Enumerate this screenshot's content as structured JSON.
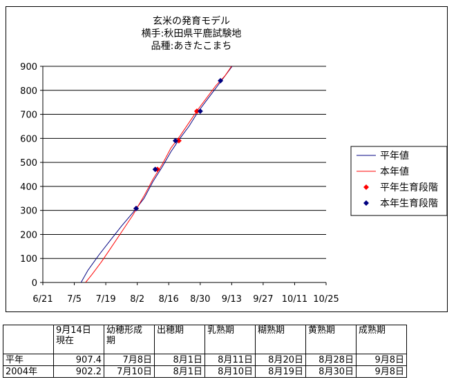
{
  "chart_data": {
    "type": "line",
    "title": [
      "玄米の発育モデル",
      "横手:秋田県平鹿試験地",
      "品種:あきたこまち"
    ],
    "x_ticks": [
      "6/21",
      "7/5",
      "7/19",
      "8/2",
      "8/16",
      "8/30",
      "9/13",
      "9/27",
      "10/11",
      "10/25"
    ],
    "x_tick_days": [
      0,
      14,
      28,
      42,
      56,
      70,
      84,
      98,
      112,
      126
    ],
    "y_ticks": [
      "0",
      "100",
      "200",
      "300",
      "400",
      "500",
      "600",
      "700",
      "800",
      "900"
    ],
    "ylim": [
      0,
      900
    ],
    "grid": "horizontal",
    "legend_position": "right",
    "series": [
      {
        "name": "平年値",
        "color": "#000080",
        "points": [
          [
            17,
            0
          ],
          [
            20,
            50
          ],
          [
            25,
            115
          ],
          [
            30,
            175
          ],
          [
            35,
            235
          ],
          [
            40,
            290
          ],
          [
            45,
            350
          ],
          [
            49,
            420
          ],
          [
            53,
            480
          ],
          [
            57,
            545
          ],
          [
            61,
            600
          ],
          [
            65,
            650
          ],
          [
            69,
            710
          ],
          [
            73,
            760
          ],
          [
            77,
            810
          ],
          [
            81,
            860
          ],
          [
            85,
            910
          ]
        ]
      },
      {
        "name": "本年値",
        "color": "#ff0000",
        "points": [
          [
            19,
            0
          ],
          [
            22,
            35
          ],
          [
            26,
            85
          ],
          [
            30,
            140
          ],
          [
            35,
            210
          ],
          [
            40,
            280
          ],
          [
            45,
            360
          ],
          [
            49,
            430
          ],
          [
            53,
            490
          ],
          [
            57,
            560
          ],
          [
            61,
            610
          ],
          [
            65,
            665
          ],
          [
            69,
            720
          ],
          [
            73,
            770
          ],
          [
            77,
            820
          ],
          [
            81,
            860
          ],
          [
            85,
            915
          ]
        ]
      },
      {
        "name": "平年生育段階",
        "color": "#ff0000",
        "marker": "diamond",
        "points": [
          [
            41.5,
            308
          ],
          [
            51,
            471
          ],
          [
            60.5,
            590
          ],
          [
            68.5,
            713
          ]
        ]
      },
      {
        "name": "本年生育段階",
        "color": "#000080",
        "marker": "diamond",
        "points": [
          [
            41.5,
            308
          ],
          [
            50,
            471
          ],
          [
            59,
            590
          ],
          [
            70,
            713
          ],
          [
            79,
            840
          ]
        ]
      }
    ]
  },
  "table": {
    "header": [
      "",
      "9月14日\n現在",
      "幼穂形成\n期",
      "出穂期",
      "乳熟期",
      "糊熟期",
      "黄熟期",
      "成熟期"
    ],
    "rows": [
      [
        "平年",
        "907.4",
        "7月8日",
        "8月1日",
        "8月11日",
        "8月20日",
        "8月28日",
        "9月8日"
      ],
      [
        "2004年",
        "902.2",
        "7月10日",
        "8月1日",
        "8月10日",
        "8月19日",
        "8月30日",
        "9月8日"
      ]
    ]
  }
}
